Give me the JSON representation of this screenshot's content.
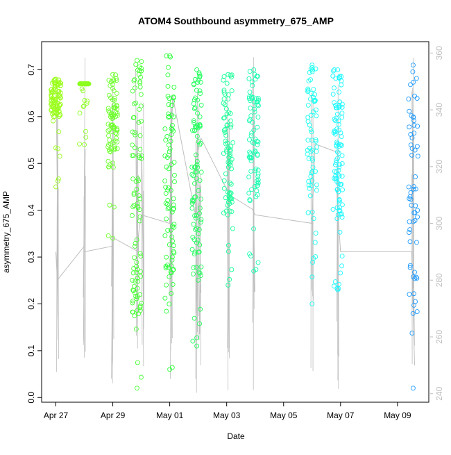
{
  "chart_data": {
    "type": "scatter",
    "title": "ATOM4 Southbound asymmetry_675_AMP",
    "xlabel": "Date",
    "ylabel": "asymmetry_675_AMP",
    "x_ticks": [
      "Apr 27",
      "Apr 29",
      "May 01",
      "May 03",
      "May 05",
      "May 07",
      "May 09"
    ],
    "x_tick_days": [
      0,
      2,
      4,
      6,
      8,
      10,
      12
    ],
    "xlim": [
      -0.5,
      13.1
    ],
    "ylim": [
      -0.01,
      0.76
    ],
    "y_ticks": [
      "0.0",
      "0.1",
      "0.2",
      "0.3",
      "0.4",
      "0.5",
      "0.6",
      "0.7"
    ],
    "y_tick_values": [
      0.0,
      0.1,
      0.2,
      0.3,
      0.4,
      0.5,
      0.6,
      0.7
    ],
    "y2_ticks": [
      "240",
      "260",
      "280",
      "300",
      "320",
      "340",
      "360"
    ],
    "y2_tick_values": [
      240,
      260,
      280,
      300,
      320,
      340,
      360
    ],
    "y2lim": [
      237,
      364
    ],
    "grid": false,
    "colors": {
      "axis": "#000000",
      "secondary_axis": "#bebebe",
      "line": "#bebebe"
    },
    "series": [
      {
        "x": 0.0,
        "y": [
          0.45,
          0.68
        ],
        "color": "#9aff1a",
        "min_y": 0.45,
        "max_y": 0.68
      },
      {
        "x": 1.0,
        "y": [
          0.54,
          0.67
        ],
        "color": "#8cff1f",
        "min_y": 0.54,
        "max_y": 0.67
      },
      {
        "x": 2.0,
        "y": [
          0.34,
          0.69
        ],
        "color": "#6cff2a",
        "min_y": 0.34,
        "max_y": 0.69
      },
      {
        "x": 2.85,
        "y": [
          0.02,
          0.72
        ],
        "color": "#43ff2f",
        "min_y": 0.02,
        "max_y": 0.72
      },
      {
        "x": 4.0,
        "y": [
          0.06,
          0.73
        ],
        "color": "#2bff3a",
        "min_y": 0.06,
        "max_y": 0.73
      },
      {
        "x": 4.95,
        "y": [
          0.11,
          0.7
        ],
        "color": "#1fff5a",
        "min_y": 0.11,
        "max_y": 0.7
      },
      {
        "x": 6.05,
        "y": [
          0.24,
          0.69
        ],
        "color": "#15ff96",
        "min_y": 0.24,
        "max_y": 0.69
      },
      {
        "x": 6.95,
        "y": [
          0.27,
          0.7
        ],
        "color": "#15ffb0",
        "min_y": 0.27,
        "max_y": 0.7
      },
      {
        "x": 9.0,
        "y": [
          0.2,
          0.71
        ],
        "color": "#1afff0",
        "min_y": 0.2,
        "max_y": 0.71
      },
      {
        "x": 9.9,
        "y": [
          0.23,
          0.7
        ],
        "color": "#1af8ff",
        "min_y": 0.23,
        "max_y": 0.7
      },
      {
        "x": 12.55,
        "y": [
          0.02,
          0.71
        ],
        "color": "#1e9bff",
        "min_y": 0.02,
        "max_y": 0.71
      }
    ],
    "secondary_line": {
      "x": [
        0.0,
        0.05,
        1.0,
        1.0,
        2.0,
        2.0,
        2.9,
        2.9,
        3.0,
        4.0,
        4.1,
        4.9,
        4.9,
        5.1,
        6.0,
        6.1,
        6.9,
        7.0,
        9.0,
        9.1,
        9.9,
        9.9,
        10.0,
        12.5,
        12.6
      ],
      "y": [
        290,
        280,
        292,
        290,
        292,
        295,
        290,
        296,
        303,
        300,
        345,
        303,
        323,
        330,
        312,
        310,
        305,
        303,
        300,
        328,
        325,
        305,
        290,
        290,
        250
      ]
    },
    "spike_columns": [
      0.05,
      1.0,
      2.0,
      2.85,
      3.05,
      4.05,
      4.95,
      5.05,
      6.05,
      6.95,
      9.0,
      9.9,
      12.55
    ]
  }
}
